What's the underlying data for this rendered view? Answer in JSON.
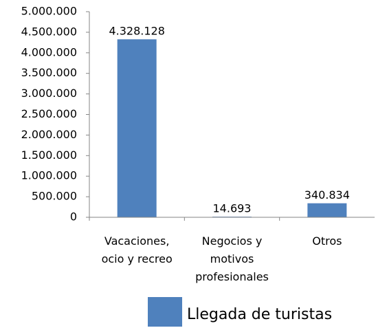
{
  "chart_data": {
    "type": "bar",
    "categories": [
      "Vacaciones, ocio y recreo",
      "Negocios y motivos profesionales",
      "Otros"
    ],
    "series": [
      {
        "name": "Llegada de turistas",
        "color": "#4f81bd",
        "values": [
          4328128,
          14693,
          340834
        ],
        "value_labels": [
          "4.328.128",
          "14.693",
          "340.834"
        ]
      }
    ],
    "ylim": [
      0,
      5000000
    ],
    "yticks": [
      0,
      {
        "value": 500000,
        "label": "500.000"
      },
      {
        "value": 1000000,
        "label": "1.000.000"
      },
      {
        "value": 1500000,
        "label": "1.500.000"
      },
      {
        "value": 2000000,
        "label": "2.000.000"
      },
      {
        "value": 2500000,
        "label": "2.500.000"
      },
      {
        "value": 3000000,
        "label": "3.000.000"
      },
      {
        "value": 3500000,
        "label": "3.500.000"
      },
      {
        "value": 4000000,
        "label": "4.000.000"
      },
      {
        "value": 4500000,
        "label": "4.500.000"
      },
      {
        "value": 5000000,
        "label": "5.000.000"
      }
    ],
    "grid": false,
    "legend": "bottom"
  }
}
